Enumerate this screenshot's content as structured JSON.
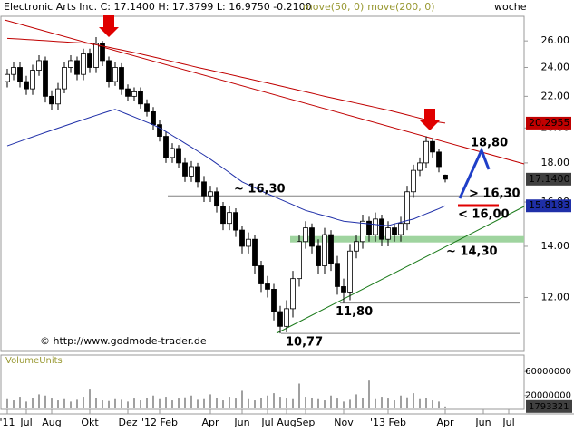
{
  "chart_data": {
    "type": "candlestick",
    "title": "Electronic Arts Inc. C: 17.1400 H: 17.3799 L: 16.9750 -0.2100",
    "period": "woche",
    "credit": "© http://www.godmode-trader.de",
    "categories": [
      "'11",
      null,
      null,
      "Jul",
      null,
      null,
      null,
      "Aug",
      null,
      null,
      null,
      null,
      null,
      "Okt",
      null,
      null,
      null,
      null,
      null,
      "Dez",
      null,
      null,
      null,
      null,
      "'12 Feb",
      null,
      null,
      null,
      null,
      null,
      null,
      null,
      "Apr",
      null,
      null,
      null,
      null,
      "Jun",
      null,
      null,
      null,
      "Jul",
      null,
      null,
      "Aug",
      null,
      null,
      "Sep",
      null,
      null,
      null,
      null,
      null,
      "Nov",
      null,
      null,
      null,
      null,
      null,
      null,
      "'13 Feb",
      null,
      null,
      null,
      null,
      null,
      null,
      null,
      null,
      "Apr",
      null,
      null,
      null,
      null,
      null,
      "Jun",
      null,
      null,
      null,
      "Jul",
      null,
      null
    ],
    "open": [
      23.0,
      23.5,
      24.0,
      23.0,
      22.5,
      23.8,
      24.5,
      22.0,
      21.5,
      22.5,
      24.0,
      24.5,
      23.5,
      25.0,
      24.0,
      25.8,
      24.5,
      23.0,
      24.0,
      22.5,
      22.0,
      22.3,
      21.5,
      21.0,
      20.2,
      19.5,
      18.3,
      18.8,
      18.0,
      17.3,
      17.8,
      17.0,
      16.3,
      16.5,
      15.8,
      15.0,
      15.5,
      14.7,
      14.0,
      14.3,
      13.2,
      12.5,
      12.3,
      11.5,
      11.0,
      11.6,
      12.7,
      14.2,
      14.8,
      14.0,
      13.2,
      14.5,
      13.3,
      12.4,
      12.2,
      13.8,
      14.2,
      15.1,
      14.5,
      15.2,
      14.3,
      14.8,
      14.5,
      15.0,
      16.5,
      17.6,
      18.0,
      19.2,
      18.6,
      17.35,
      null,
      null,
      null,
      null,
      null,
      null,
      null,
      null,
      null,
      null,
      null,
      null
    ],
    "high": [
      23.9,
      24.4,
      24.4,
      23.4,
      24.2,
      24.9,
      24.8,
      22.4,
      22.9,
      24.4,
      24.9,
      24.8,
      25.4,
      25.4,
      26.3,
      26.0,
      24.8,
      24.4,
      24.3,
      22.8,
      22.6,
      22.6,
      21.8,
      21.3,
      20.5,
      19.8,
      19.1,
      19.0,
      18.3,
      18.1,
      18.0,
      17.3,
      16.8,
      16.7,
      16.0,
      15.8,
      15.7,
      14.9,
      14.6,
      14.5,
      13.4,
      12.8,
      12.5,
      11.7,
      11.9,
      13.0,
      14.5,
      15.1,
      15.0,
      14.3,
      14.8,
      14.7,
      13.6,
      12.7,
      14.1,
      14.5,
      15.4,
      15.3,
      15.5,
      15.4,
      15.1,
      15.0,
      15.3,
      16.8,
      17.9,
      18.3,
      19.5,
      19.4,
      18.8,
      17.3799,
      null,
      null,
      null,
      null,
      null,
      null,
      null,
      null,
      null,
      null,
      null,
      null
    ],
    "low": [
      22.6,
      23.1,
      22.6,
      22.1,
      22.1,
      23.4,
      21.6,
      21.1,
      21.1,
      22.2,
      23.6,
      23.1,
      23.1,
      23.6,
      23.6,
      24.1,
      22.6,
      22.7,
      22.1,
      21.7,
      21.7,
      21.2,
      20.7,
      19.9,
      19.2,
      18.0,
      18.0,
      17.7,
      17.0,
      17.0,
      16.7,
      16.0,
      16.0,
      15.5,
      14.7,
      14.7,
      14.4,
      13.7,
      13.7,
      12.9,
      12.2,
      12.0,
      11.2,
      10.77,
      10.8,
      11.3,
      12.4,
      13.9,
      13.7,
      12.9,
      12.9,
      13.0,
      12.1,
      11.8,
      11.9,
      13.5,
      13.9,
      14.2,
      14.2,
      14.0,
      14.0,
      14.2,
      14.2,
      14.7,
      16.2,
      17.3,
      17.7,
      18.3,
      17.5,
      16.975,
      null,
      null,
      null,
      null,
      null,
      null,
      null,
      null,
      null,
      null,
      null,
      null
    ],
    "close": [
      23.5,
      24.0,
      23.0,
      22.5,
      23.8,
      24.5,
      22.0,
      21.5,
      22.5,
      24.0,
      24.5,
      23.5,
      25.0,
      24.0,
      25.8,
      24.5,
      23.0,
      24.0,
      22.5,
      22.0,
      22.3,
      21.5,
      21.0,
      20.2,
      19.5,
      18.3,
      18.8,
      18.0,
      17.3,
      17.8,
      17.0,
      16.3,
      16.5,
      15.8,
      15.0,
      15.5,
      14.7,
      14.0,
      14.3,
      13.2,
      12.5,
      12.3,
      11.5,
      11.0,
      11.6,
      12.7,
      14.2,
      14.8,
      14.0,
      13.2,
      14.5,
      13.3,
      12.4,
      12.2,
      13.8,
      14.2,
      15.1,
      14.5,
      15.2,
      14.3,
      14.8,
      14.5,
      15.0,
      16.5,
      17.6,
      18.0,
      19.2,
      18.6,
      17.8,
      17.14,
      null,
      null,
      null,
      null,
      null,
      null,
      null,
      null,
      null,
      null,
      null,
      null
    ],
    "last_label": "17.1400",
    "up_color": "#ffffff",
    "down_color": "#000000",
    "legend_color": "#999933",
    "overlays": [
      {
        "name": "move(50, 0)",
        "color": "#1f2fa8",
        "last_label": "15.8183",
        "values": [
          18.95,
          19.08,
          19.21,
          19.34,
          19.47,
          19.6,
          19.73,
          19.86,
          19.99,
          20.12,
          20.25,
          20.38,
          20.51,
          20.64,
          20.77,
          20.9,
          21.03,
          21.15,
          20.99,
          20.83,
          20.67,
          20.51,
          20.35,
          20.19,
          20.0,
          19.78,
          19.55,
          19.33,
          19.1,
          18.88,
          18.65,
          18.43,
          18.2,
          17.96,
          17.72,
          17.48,
          17.24,
          17.0,
          16.85,
          16.7,
          16.55,
          16.4,
          16.27,
          16.13,
          16.0,
          15.87,
          15.73,
          15.6,
          15.52,
          15.43,
          15.35,
          15.27,
          15.18,
          15.1,
          15.07,
          15.04,
          15.01,
          14.98,
          14.95,
          14.92,
          14.9,
          14.98,
          15.05,
          15.13,
          15.2,
          15.32,
          15.44,
          15.56,
          15.68,
          15.8183,
          null,
          null,
          null,
          null,
          null,
          null,
          null,
          null,
          null,
          null,
          null,
          null
        ]
      },
      {
        "name": "move(200, 0)",
        "color": "#c00000",
        "last_label": "20.2955",
        "values": [
          26.2,
          26.17,
          26.14,
          26.11,
          26.08,
          26.05,
          26.02,
          25.98,
          25.95,
          25.92,
          25.89,
          25.86,
          25.83,
          25.8,
          25.7,
          25.6,
          25.5,
          25.4,
          25.3,
          25.2,
          25.1,
          24.99,
          24.88,
          24.77,
          24.66,
          24.55,
          24.44,
          24.33,
          24.22,
          24.11,
          24.0,
          23.9,
          23.8,
          23.7,
          23.6,
          23.5,
          23.4,
          23.3,
          23.2,
          23.1,
          23.0,
          22.9,
          22.8,
          22.7,
          22.6,
          22.5,
          22.4,
          22.3,
          22.2,
          22.1,
          22.0,
          21.91,
          21.82,
          21.73,
          21.64,
          21.55,
          21.46,
          21.37,
          21.28,
          21.19,
          21.1,
          21.0,
          20.9,
          20.8,
          20.7,
          20.6,
          20.5,
          20.4,
          20.35,
          20.2955,
          null,
          null,
          null,
          null,
          null,
          null,
          null,
          null,
          null,
          null,
          null,
          null
        ]
      }
    ],
    "log_scale": true,
    "ylim": [
      10.2,
      28.0
    ],
    "yticks": [
      {
        "value": 12,
        "label": "12.00"
      },
      {
        "value": 14,
        "label": "14.00"
      },
      {
        "value": 16,
        "label": "16.00"
      },
      {
        "value": 18,
        "label": "18.00"
      },
      {
        "value": 20,
        "label": "20.00"
      },
      {
        "value": 22,
        "label": "22.00"
      },
      {
        "value": 24,
        "label": "24.00"
      },
      {
        "value": 26,
        "label": "26.00"
      }
    ],
    "levels": [
      {
        "value": 16.3,
        "label": "~ 16,30"
      },
      {
        "value": 11.8,
        "label": "11,80"
      },
      {
        "value": 10.77,
        "label": "10,77"
      }
    ],
    "zone": {
      "value": 14.3,
      "label": "~ 14,30"
    },
    "targets": [
      {
        "value": 18.8,
        "label": "18,80",
        "color": "#1f3fc8"
      },
      {
        "value": 16.3,
        "label": "> 16,30",
        "color": "#1f3fc8"
      },
      {
        "value": 16.0,
        "label": "< 16,00",
        "color": "#e00000"
      }
    ],
    "volume": {
      "title": "VolumeUnits",
      "color": "#808080",
      "values": [
        14000000,
        12000000,
        18000000,
        10000000,
        16000000,
        22000000,
        20000000,
        15000000,
        12000000,
        14000000,
        10000000,
        13000000,
        18000000,
        30000000,
        16000000,
        12000000,
        11000000,
        14000000,
        13000000,
        10000000,
        15000000,
        12000000,
        16000000,
        20000000,
        14000000,
        18000000,
        12000000,
        15000000,
        17000000,
        20000000,
        13000000,
        14000000,
        22000000,
        16000000,
        12000000,
        18000000,
        15000000,
        28000000,
        14000000,
        12000000,
        16000000,
        20000000,
        24000000,
        18000000,
        15000000,
        14000000,
        40000000,
        18000000,
        16000000,
        14000000,
        12000000,
        20000000,
        15000000,
        10000000,
        13000000,
        22000000,
        16000000,
        45000000,
        14000000,
        18000000,
        15000000,
        12000000,
        20000000,
        17000000,
        24000000,
        14000000,
        16000000,
        12000000,
        10000000,
        1793321,
        null,
        null,
        null,
        null,
        null,
        null,
        null,
        null,
        null,
        null,
        null,
        null
      ],
      "ylim": [
        0,
        83000000
      ],
      "yticks": [
        20000000,
        60000000
      ]
    }
  }
}
